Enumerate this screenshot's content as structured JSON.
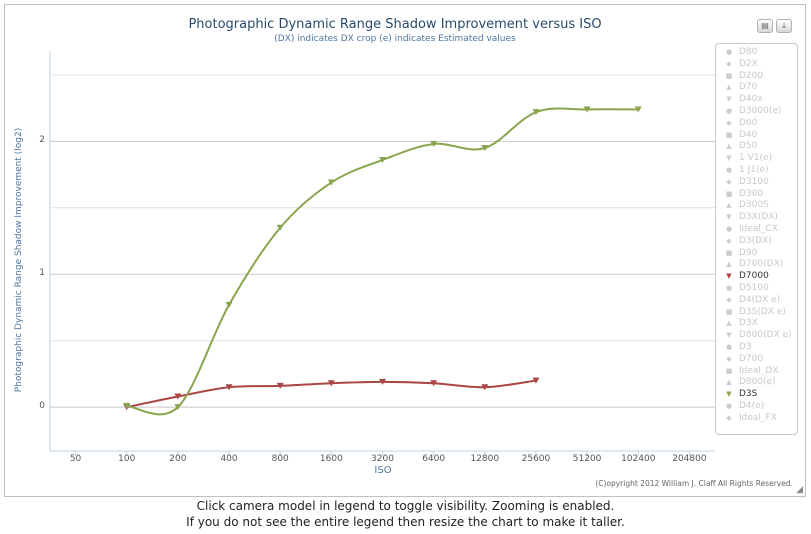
{
  "chart_data": {
    "type": "line",
    "title": "Photographic Dynamic Range Shadow Improvement versus ISO",
    "subtitle": "(DX) indicates DX crop (e) indicates Estimated values",
    "xlabel": "ISO",
    "ylabel": "Photographic Dynamic Range Shadow Improvement (log2)",
    "x_scale": "log2",
    "x_ticks": [
      "50",
      "100",
      "200",
      "400",
      "800",
      "1600",
      "3200",
      "6400",
      "12800",
      "25600",
      "51200",
      "102400",
      "204800"
    ],
    "y_ticks": [
      "0",
      "1",
      "2"
    ],
    "ylim": [
      -0.33,
      2.68
    ],
    "grid": true,
    "legend_position": "right",
    "series": [
      {
        "name": "D7000",
        "color": "#aa4643",
        "marker": "triangle-down",
        "x": [
          100,
          200,
          400,
          800,
          1600,
          3200,
          6400,
          12800,
          25600
        ],
        "y": [
          0.0,
          0.08,
          0.15,
          0.16,
          0.18,
          0.19,
          0.18,
          0.15,
          0.2
        ]
      },
      {
        "name": "D3S",
        "color": "#89a54e",
        "marker": "triangle-down",
        "x": [
          100,
          200,
          400,
          800,
          1600,
          3200,
          6400,
          12800,
          25600,
          51200,
          102400
        ],
        "y": [
          0.01,
          0.0,
          0.77,
          1.35,
          1.69,
          1.86,
          1.98,
          1.95,
          2.22,
          2.24,
          2.24
        ]
      }
    ]
  },
  "legend": {
    "items": [
      {
        "label": "D80",
        "marker": "●",
        "active": false
      },
      {
        "label": "D2X",
        "marker": "◆",
        "active": false
      },
      {
        "label": "D200",
        "marker": "■",
        "active": false
      },
      {
        "label": "D70",
        "marker": "▲",
        "active": false
      },
      {
        "label": "D40x",
        "marker": "▼",
        "active": false
      },
      {
        "label": "D3000(e)",
        "marker": "●",
        "active": false
      },
      {
        "label": "D60",
        "marker": "◆",
        "active": false
      },
      {
        "label": "D40",
        "marker": "■",
        "active": false
      },
      {
        "label": "D50",
        "marker": "▲",
        "active": false
      },
      {
        "label": "1 V1(e)",
        "marker": "▼",
        "active": false
      },
      {
        "label": "1 J1(e)",
        "marker": "●",
        "active": false
      },
      {
        "label": "D3100",
        "marker": "◆",
        "active": false
      },
      {
        "label": "D300",
        "marker": "■",
        "active": false
      },
      {
        "label": "D300S",
        "marker": "▲",
        "active": false
      },
      {
        "label": "D3X(DX)",
        "marker": "▼",
        "active": false
      },
      {
        "label": "Ideal_CX",
        "marker": "●",
        "active": false
      },
      {
        "label": "D3(DX)",
        "marker": "◆",
        "active": false
      },
      {
        "label": "D90",
        "marker": "■",
        "active": false
      },
      {
        "label": "D700(DX)",
        "marker": "▲",
        "active": false
      },
      {
        "label": "D7000",
        "marker": "▼",
        "active": true,
        "color": "#aa4643"
      },
      {
        "label": "D5100",
        "marker": "●",
        "active": false
      },
      {
        "label": "D4(DX e)",
        "marker": "◆",
        "active": false
      },
      {
        "label": "D3S(DX e)",
        "marker": "■",
        "active": false
      },
      {
        "label": "D3X",
        "marker": "▲",
        "active": false
      },
      {
        "label": "D800(DX e)",
        "marker": "▼",
        "active": false
      },
      {
        "label": "D3",
        "marker": "●",
        "active": false
      },
      {
        "label": "D700",
        "marker": "◆",
        "active": false
      },
      {
        "label": "Ideal_DX",
        "marker": "■",
        "active": false
      },
      {
        "label": "D800(e)",
        "marker": "▲",
        "active": false
      },
      {
        "label": "D3S",
        "marker": "▼",
        "active": true,
        "color": "#89a54e"
      },
      {
        "label": "D4(e)",
        "marker": "●",
        "active": false
      },
      {
        "label": "Ideal_FX",
        "marker": "◆",
        "active": false
      }
    ]
  },
  "credit": "(C)opyright 2012 William J. Claff All Rights Reserved.",
  "export": {
    "print_icon": "printer-icon",
    "download_icon": "download-icon"
  },
  "footer": {
    "line1": "Click camera model in legend to toggle visibility. Zooming is enabled.",
    "line2": "If you do not see the entire legend then resize the chart to make it taller."
  }
}
